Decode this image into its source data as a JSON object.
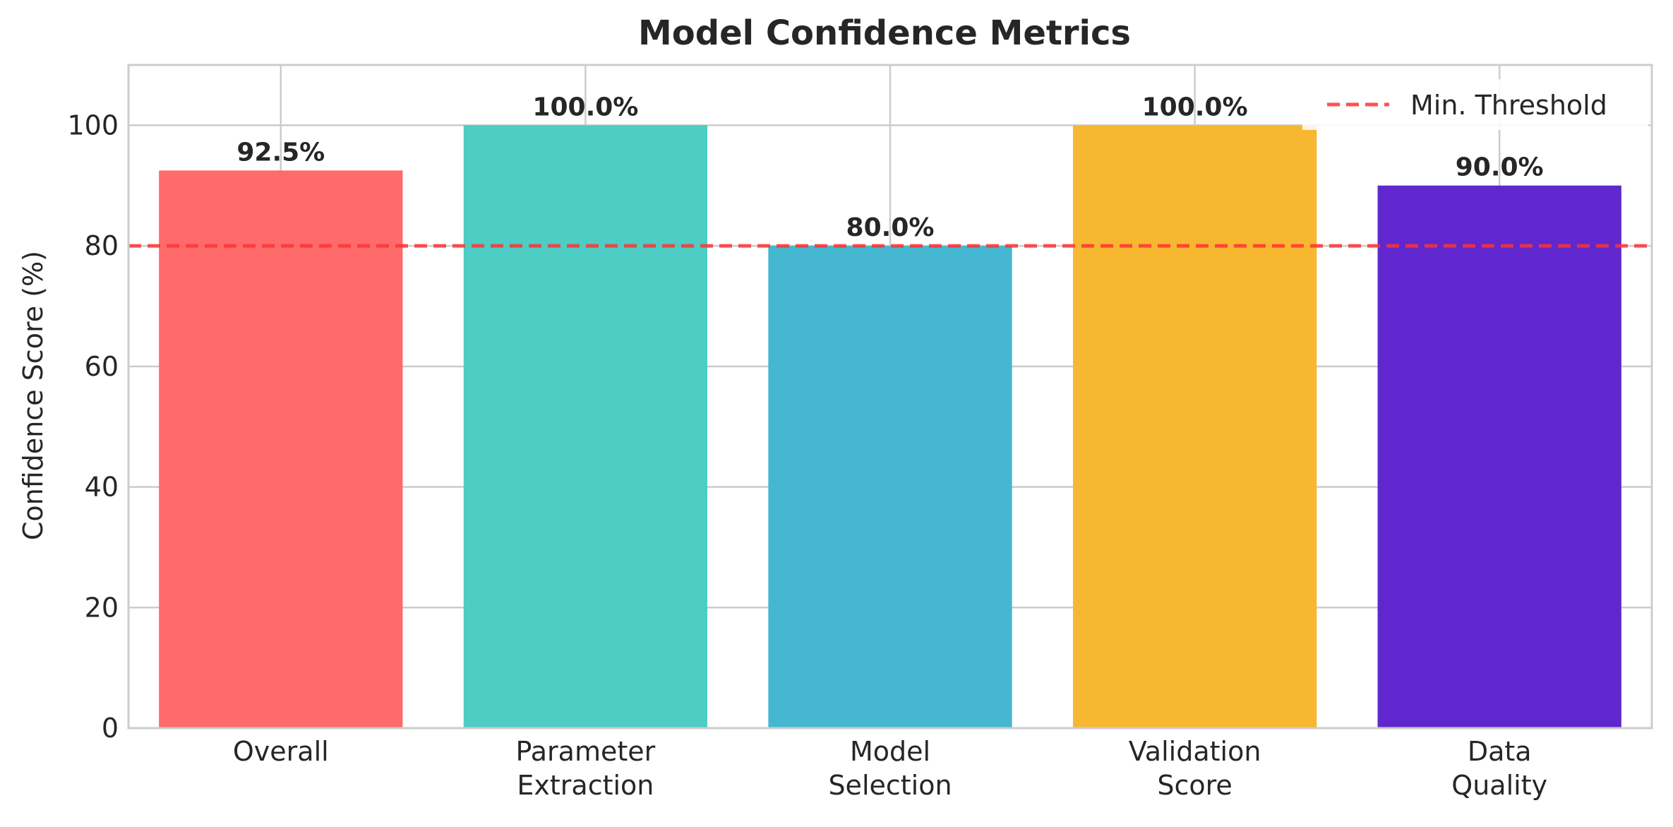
{
  "chart_data": {
    "type": "bar",
    "title": "Model Confidence Metrics",
    "xlabel": "",
    "ylabel": "Confidence Score (%)",
    "ylim": [
      0,
      110
    ],
    "yticks": [
      "0",
      "20",
      "40",
      "60",
      "80",
      "100"
    ],
    "grid": true,
    "legend_position": "top-right",
    "categories": [
      [
        "Overall"
      ],
      [
        "Parameter",
        "Extraction"
      ],
      [
        "Model",
        "Selection"
      ],
      [
        "Validation",
        "Score"
      ],
      [
        "Data",
        "Quality"
      ]
    ],
    "values": [
      92.5,
      100.0,
      80.0,
      100.0,
      90.0
    ],
    "value_labels": [
      "92.5%",
      "100.0%",
      "80.0%",
      "100.0%",
      "90.0%"
    ],
    "colors": [
      "#FF6B6B",
      "#4ECDC4",
      "#45B7D1",
      "#F7B731",
      "#5F27CD"
    ],
    "threshold": {
      "value": 80,
      "label": "Min. Threshold",
      "color": "#FF3333",
      "style": "dashed"
    }
  }
}
